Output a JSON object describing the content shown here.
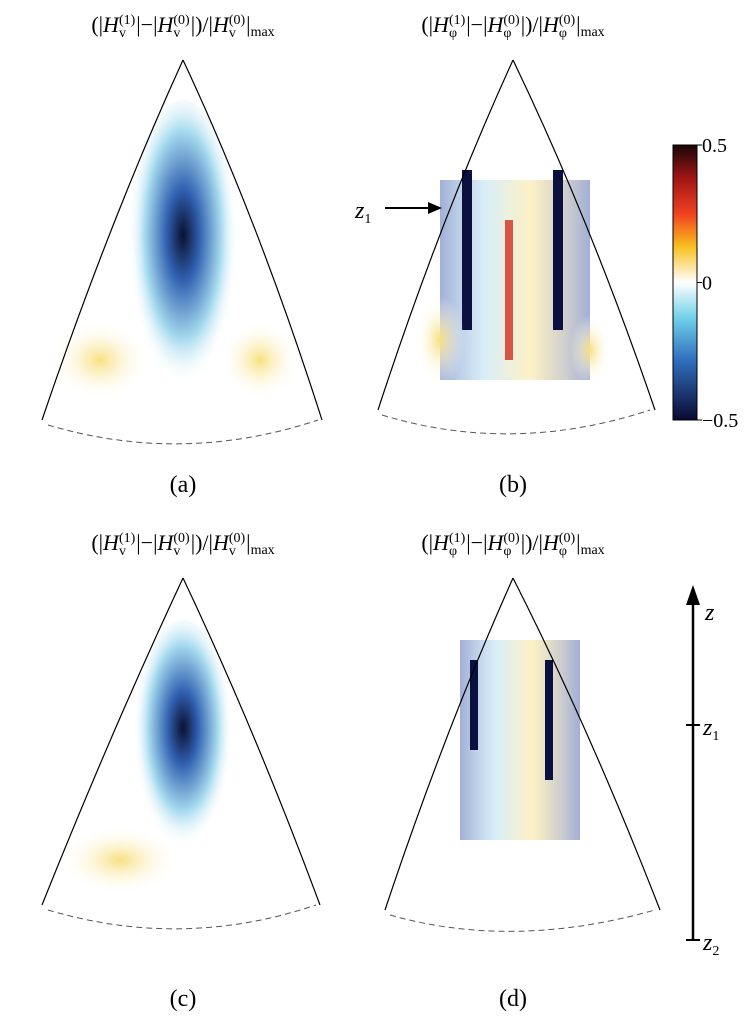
{
  "panels": [
    {
      "title": [
        {
          "t": "(|"
        },
        {
          "t": "H"
        },
        {
          "sup": "(1)",
          "sub": "v"
        },
        {
          "t": "|−|"
        },
        {
          "t": "H"
        },
        {
          "sup": "(0)",
          "sub": "v"
        },
        {
          "t": "|)/|"
        },
        {
          "t": "H"
        },
        {
          "sup": "(0)",
          "sub": "v"
        },
        {
          "t": "|"
        },
        {
          "lo": "max"
        }
      ],
      "label": "(a)"
    },
    {
      "title": [
        {
          "t": "(|"
        },
        {
          "t": "H"
        },
        {
          "sup": "(1)",
          "sub": "φ"
        },
        {
          "t": "|−|"
        },
        {
          "t": "H"
        },
        {
          "sup": "(0)",
          "sub": "φ"
        },
        {
          "t": "|)/|"
        },
        {
          "t": "H"
        },
        {
          "sup": "(0)",
          "sub": "φ"
        },
        {
          "t": "|"
        },
        {
          "lo": "max"
        }
      ],
      "label": "(b)"
    },
    {
      "title": [
        {
          "t": "(|"
        },
        {
          "t": "H"
        },
        {
          "sup": "(1)",
          "sub": "v"
        },
        {
          "t": "|−|"
        },
        {
          "t": "H"
        },
        {
          "sup": "(0)",
          "sub": "v"
        },
        {
          "t": "|)/|"
        },
        {
          "t": "H"
        },
        {
          "sup": "(0)",
          "sub": "v"
        },
        {
          "t": "|"
        },
        {
          "lo": "max"
        }
      ],
      "label": "(c)"
    },
    {
      "title": [
        {
          "t": "(|"
        },
        {
          "t": "H"
        },
        {
          "sup": "(1)",
          "sub": "φ"
        },
        {
          "t": "|−|"
        },
        {
          "t": "H"
        },
        {
          "sup": "(0)",
          "sub": "φ"
        },
        {
          "t": "|)/|"
        },
        {
          "t": "H"
        },
        {
          "sup": "(0)",
          "sub": "φ"
        },
        {
          "t": "|"
        },
        {
          "lo": "max"
        }
      ],
      "label": "(d)"
    }
  ],
  "colorbar": {
    "range": [
      -0.5,
      0.5
    ],
    "ticks": [
      0.5,
      0,
      {
        "value": -0.5,
        "label": "−0.5"
      }
    ]
  },
  "annotation": {
    "var": "z",
    "sub": "1"
  },
  "axis": {
    "top": {
      "var": "z"
    },
    "mid": {
      "var": "z",
      "sub": "1"
    },
    "bottom": {
      "var": "z",
      "sub": "2"
    }
  }
}
